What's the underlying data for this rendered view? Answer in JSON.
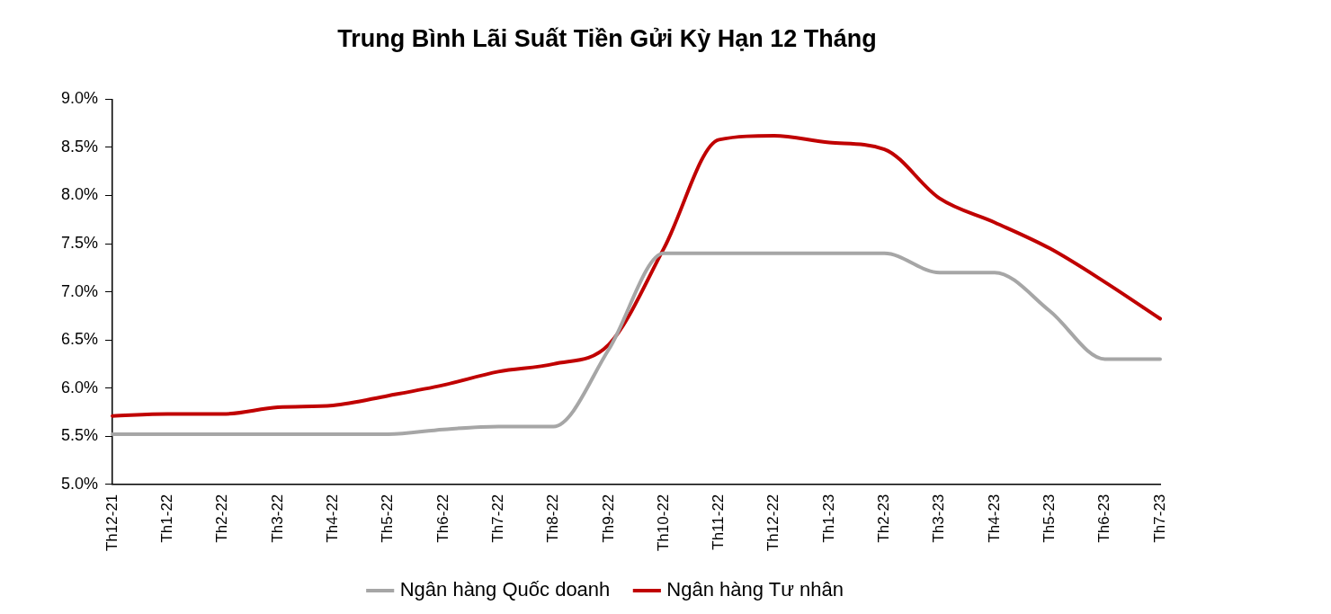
{
  "chart_data": {
    "type": "line",
    "title": "Trung Bình Lãi Suất Tiền Gửi Kỳ Hạn 12 Tháng",
    "categories": [
      "Th12-21",
      "Th1-22",
      "Th2-22",
      "Th3-22",
      "Th4-22",
      "Th5-22",
      "Th6-22",
      "Th7-22",
      "Th8-22",
      "Th9-22",
      "Th10-22",
      "Th11-22",
      "Th12-22",
      "Th1-23",
      "Th2-23",
      "Th3-23",
      "Th4-23",
      "Th5-23",
      "Th6-23",
      "Th7-23"
    ],
    "series": [
      {
        "name": "Ngân hàng Quốc doanh",
        "color": "#a6a6a6",
        "values": [
          5.52,
          5.52,
          5.52,
          5.52,
          5.52,
          5.52,
          5.57,
          5.6,
          5.6,
          6.4,
          7.4,
          7.4,
          7.4,
          7.4,
          7.4,
          7.2,
          7.2,
          6.8,
          6.3,
          6.3
        ]
      },
      {
        "name": "Ngân hàng Tư nhân",
        "color": "#c00000",
        "values": [
          5.71,
          5.73,
          5.73,
          5.8,
          5.82,
          5.92,
          6.03,
          6.17,
          6.25,
          6.45,
          7.45,
          8.58,
          8.62,
          8.55,
          8.48,
          7.97,
          7.72,
          7.45,
          7.1,
          6.72
        ]
      }
    ],
    "ylim": [
      5.0,
      9.0
    ],
    "yticks": [
      {
        "value": 5.0,
        "label": "5.0%"
      },
      {
        "value": 5.5,
        "label": "5.5%"
      },
      {
        "value": 6.0,
        "label": "6.0%"
      },
      {
        "value": 6.5,
        "label": "6.5%"
      },
      {
        "value": 7.0,
        "label": "7.0%"
      },
      {
        "value": 7.5,
        "label": "7.5%"
      },
      {
        "value": 8.0,
        "label": "8.0%"
      },
      {
        "value": 8.5,
        "label": "8.5%"
      },
      {
        "value": 9.0,
        "label": "9.0%"
      }
    ],
    "grid": false,
    "legend": "bottom",
    "marker": "none",
    "line_style": "solid"
  }
}
